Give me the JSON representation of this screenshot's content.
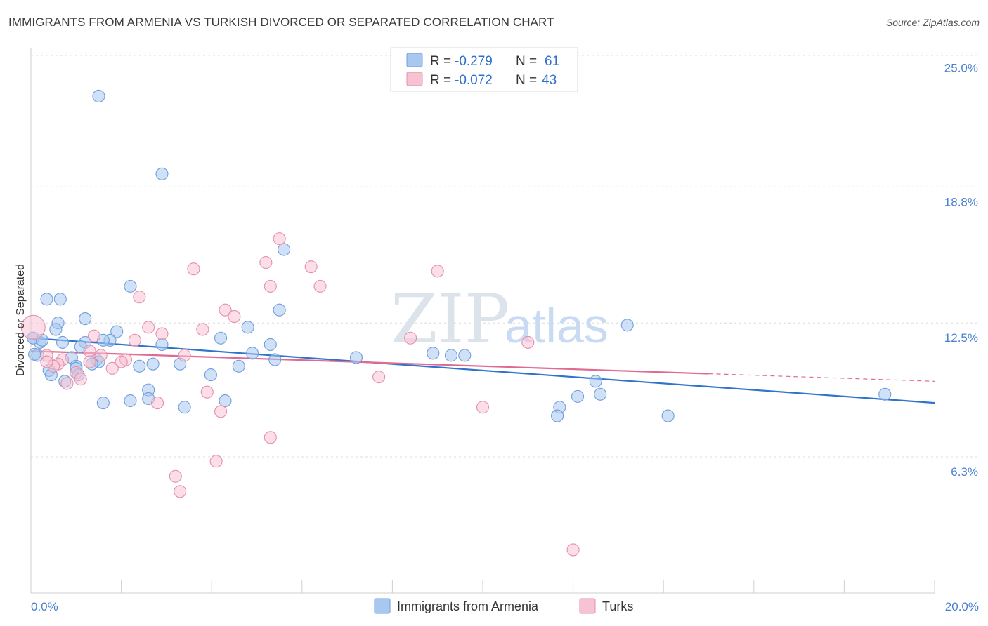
{
  "title": "IMMIGRANTS FROM ARMENIA VS TURKISH DIVORCED OR SEPARATED CORRELATION CHART",
  "source": "Source: ZipAtlas.com",
  "watermark": {
    "zip": "ZIP",
    "atlas": "atlas"
  },
  "chart_data": {
    "type": "scatter",
    "xlabel": "",
    "ylabel": "Divorced or Separated",
    "xlim": [
      0,
      20
    ],
    "ylim": [
      0,
      25.5
    ],
    "x_tick_labels": [
      {
        "value": 0,
        "label": "0.0%"
      },
      {
        "value": 20,
        "label": "20.0%"
      }
    ],
    "y_tick_labels": [
      {
        "value": 6.3,
        "label": "6.3%"
      },
      {
        "value": 12.5,
        "label": "12.5%"
      },
      {
        "value": 18.8,
        "label": "18.8%"
      },
      {
        "value": 25.0,
        "label": "25.0%"
      }
    ],
    "grid": true,
    "legend_position": "top-center",
    "stats": [
      {
        "r_label": "R =",
        "r_value": "-0.279",
        "n_label": "N =",
        "n_value": "61"
      },
      {
        "r_label": "R =",
        "r_value": "-0.072",
        "n_label": "N =",
        "n_value": 43
      }
    ],
    "series": [
      {
        "name": "Immigrants from Armenia",
        "color": "#a9c8f0",
        "edge": "#6f9fdc",
        "trend_color": "#2e74cc",
        "trend": {
          "x": [
            0,
            20
          ],
          "y": [
            11.8,
            8.8
          ],
          "dashed_from": null
        },
        "points": [
          [
            1.5,
            23.0
          ],
          [
            2.9,
            19.4
          ],
          [
            5.6,
            15.9
          ],
          [
            2.2,
            14.2
          ],
          [
            0.35,
            13.6
          ],
          [
            0.65,
            13.6
          ],
          [
            5.5,
            13.1
          ],
          [
            1.2,
            12.7
          ],
          [
            0.6,
            12.5
          ],
          [
            13.2,
            12.4
          ],
          [
            4.8,
            12.3
          ],
          [
            0.55,
            12.2
          ],
          [
            1.9,
            12.1
          ],
          [
            0.05,
            11.8
          ],
          [
            4.2,
            11.8
          ],
          [
            1.75,
            11.7
          ],
          [
            1.6,
            11.7
          ],
          [
            0.2,
            11.6
          ],
          [
            0.7,
            11.6
          ],
          [
            1.2,
            11.6
          ],
          [
            1.1,
            11.4
          ],
          [
            2.9,
            11.5
          ],
          [
            5.3,
            11.5
          ],
          [
            4.9,
            11.1
          ],
          [
            8.9,
            11.1
          ],
          [
            9.3,
            11.0
          ],
          [
            9.6,
            11.0
          ],
          [
            0.15,
            11.0
          ],
          [
            7.2,
            10.9
          ],
          [
            0.9,
            10.9
          ],
          [
            1.45,
            10.8
          ],
          [
            1.5,
            10.7
          ],
          [
            5.4,
            10.8
          ],
          [
            1.35,
            10.6
          ],
          [
            2.7,
            10.6
          ],
          [
            3.3,
            10.6
          ],
          [
            1.0,
            10.5
          ],
          [
            1.0,
            10.4
          ],
          [
            2.4,
            10.5
          ],
          [
            4.6,
            10.5
          ],
          [
            0.4,
            10.3
          ],
          [
            1.05,
            10.1
          ],
          [
            0.45,
            10.1
          ],
          [
            3.98,
            10.1
          ],
          [
            0.75,
            9.8
          ],
          [
            12.5,
            9.8
          ],
          [
            2.6,
            9.4
          ],
          [
            18.9,
            9.2
          ],
          [
            12.6,
            9.2
          ],
          [
            12.1,
            9.1
          ],
          [
            2.6,
            9.0
          ],
          [
            2.2,
            8.9
          ],
          [
            4.3,
            8.9
          ],
          [
            1.6,
            8.8
          ],
          [
            3.4,
            8.6
          ],
          [
            11.7,
            8.6
          ],
          [
            11.65,
            8.2
          ],
          [
            14.1,
            8.2
          ],
          [
            0.05,
            11.8
          ],
          [
            0.25,
            11.7
          ],
          [
            0.08,
            11.05
          ]
        ]
      },
      {
        "name": "Turks",
        "color": "#f7c3d3",
        "edge": "#e58fab",
        "trend_color": "#e06a94",
        "trend": {
          "x": [
            0,
            20
          ],
          "y": [
            11.2,
            9.8
          ],
          "dashed_from": 15
        },
        "points": [
          [
            5.5,
            16.4
          ],
          [
            5.2,
            15.3
          ],
          [
            6.2,
            15.1
          ],
          [
            3.6,
            15.0
          ],
          [
            9.0,
            14.9
          ],
          [
            5.3,
            14.2
          ],
          [
            6.4,
            14.2
          ],
          [
            2.4,
            13.7
          ],
          [
            4.3,
            13.1
          ],
          [
            4.5,
            12.8
          ],
          [
            0.05,
            12.3
          ],
          [
            2.6,
            12.3
          ],
          [
            3.8,
            12.2
          ],
          [
            2.9,
            12.0
          ],
          [
            1.4,
            11.9
          ],
          [
            8.4,
            11.8
          ],
          [
            2.3,
            11.7
          ],
          [
            11.0,
            11.6
          ],
          [
            1.3,
            11.2
          ],
          [
            0.35,
            11.0
          ],
          [
            1.55,
            11.0
          ],
          [
            3.4,
            11.0
          ],
          [
            0.7,
            10.8
          ],
          [
            2.1,
            10.8
          ],
          [
            2.0,
            10.7
          ],
          [
            1.3,
            10.7
          ],
          [
            0.6,
            10.6
          ],
          [
            0.5,
            10.5
          ],
          [
            0.35,
            10.7
          ],
          [
            1.8,
            10.4
          ],
          [
            1.0,
            10.2
          ],
          [
            7.7,
            10.0
          ],
          [
            1.1,
            9.9
          ],
          [
            0.8,
            9.7
          ],
          [
            3.9,
            9.3
          ],
          [
            2.8,
            8.8
          ],
          [
            10.0,
            8.6
          ],
          [
            4.2,
            8.4
          ],
          [
            5.3,
            7.2
          ],
          [
            4.1,
            6.1
          ],
          [
            3.2,
            5.4
          ],
          [
            3.3,
            4.7
          ],
          [
            12.0,
            2.0
          ]
        ]
      }
    ]
  }
}
